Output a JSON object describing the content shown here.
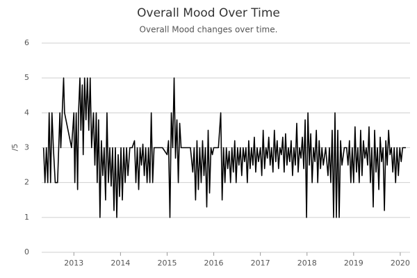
{
  "chart_data": {
    "type": "line",
    "title": "Overall Mood Over Time",
    "subtitle": "Overall Mood changes over time.",
    "ylabel": "/5",
    "color": "#000000",
    "grid": true,
    "xlim": [
      2012.31,
      2020.21
    ],
    "xticks": [
      2013,
      2014,
      2015,
      2016,
      2017,
      2018,
      2019,
      2020
    ],
    "ylim": [
      0,
      6
    ],
    "yticks": [
      0,
      1,
      2,
      3,
      4,
      5,
      6
    ],
    "x": [
      2012.35,
      2012.38,
      2012.41,
      2012.44,
      2012.47,
      2012.5,
      2012.53,
      2012.56,
      2012.6,
      2012.65,
      2012.7,
      2012.72,
      2012.75,
      2012.78,
      2012.8,
      2012.95,
      2013.0,
      2013.02,
      2013.05,
      2013.08,
      2013.1,
      2013.13,
      2013.15,
      2013.18,
      2013.2,
      2013.23,
      2013.26,
      2013.29,
      2013.32,
      2013.35,
      2013.38,
      2013.42,
      2013.45,
      2013.48,
      2013.5,
      2013.53,
      2013.56,
      2013.59,
      2013.62,
      2013.65,
      2013.68,
      2013.71,
      2013.74,
      2013.77,
      2013.8,
      2013.83,
      2013.86,
      2013.89,
      2013.92,
      2013.95,
      2013.98,
      2014.01,
      2014.04,
      2014.07,
      2014.1,
      2014.13,
      2014.16,
      2014.2,
      2014.25,
      2014.3,
      2014.33,
      2014.36,
      2014.39,
      2014.42,
      2014.45,
      2014.48,
      2014.51,
      2014.54,
      2014.57,
      2014.6,
      2014.63,
      2014.66,
      2014.69,
      2014.72,
      2014.8,
      2014.9,
      2015.0,
      2015.03,
      2015.06,
      2015.09,
      2015.12,
      2015.15,
      2015.18,
      2015.21,
      2015.24,
      2015.27,
      2015.3,
      2015.4,
      2015.5,
      2015.55,
      2015.58,
      2015.61,
      2015.64,
      2015.67,
      2015.7,
      2015.73,
      2015.76,
      2015.79,
      2015.82,
      2015.85,
      2015.88,
      2015.91,
      2015.94,
      2015.97,
      2016.0,
      2016.1,
      2016.15,
      2016.18,
      2016.21,
      2016.24,
      2016.27,
      2016.3,
      2016.33,
      2016.36,
      2016.39,
      2016.42,
      2016.45,
      2016.48,
      2016.51,
      2016.54,
      2016.57,
      2016.6,
      2016.63,
      2016.66,
      2016.69,
      2016.72,
      2016.75,
      2016.78,
      2016.81,
      2016.84,
      2016.87,
      2016.9,
      2016.93,
      2016.96,
      2017.0,
      2017.03,
      2017.06,
      2017.09,
      2017.12,
      2017.15,
      2017.18,
      2017.21,
      2017.24,
      2017.27,
      2017.3,
      2017.33,
      2017.36,
      2017.39,
      2017.42,
      2017.45,
      2017.48,
      2017.51,
      2017.54,
      2017.57,
      2017.6,
      2017.63,
      2017.66,
      2017.69,
      2017.72,
      2017.75,
      2017.78,
      2017.81,
      2017.84,
      2017.87,
      2017.9,
      2017.93,
      2017.96,
      2017.99,
      2018.02,
      2018.05,
      2018.08,
      2018.11,
      2018.14,
      2018.17,
      2018.2,
      2018.23,
      2018.26,
      2018.29,
      2018.32,
      2018.35,
      2018.4,
      2018.45,
      2018.48,
      2018.51,
      2018.54,
      2018.57,
      2018.6,
      2018.63,
      2018.66,
      2018.69,
      2018.72,
      2018.75,
      2018.8,
      2018.85,
      2018.88,
      2018.91,
      2018.94,
      2018.97,
      2019.0,
      2019.03,
      2019.06,
      2019.09,
      2019.12,
      2019.15,
      2019.18,
      2019.21,
      2019.24,
      2019.27,
      2019.3,
      2019.33,
      2019.36,
      2019.39,
      2019.42,
      2019.45,
      2019.48,
      2019.51,
      2019.54,
      2019.57,
      2019.6,
      2019.63,
      2019.66,
      2019.69,
      2019.72,
      2019.75,
      2019.78,
      2019.81,
      2019.84,
      2019.87,
      2019.9,
      2019.93,
      2019.96,
      2019.99,
      2020.02,
      2020.05,
      2020.12
    ],
    "values": [
      3,
      2,
      3,
      2,
      4,
      2,
      4,
      3,
      2,
      2,
      4,
      3,
      4,
      5,
      4,
      3,
      4,
      2,
      4,
      1.8,
      4,
      5,
      3.5,
      4.8,
      2.8,
      5,
      3.8,
      5,
      3.5,
      5,
      3,
      4,
      2.5,
      4,
      2,
      3.8,
      1,
      3.2,
      2.2,
      3,
      1.5,
      4,
      2,
      3,
      1.9,
      3,
      1.2,
      3,
      1,
      2.8,
      1.6,
      3,
      1.5,
      3,
      2,
      3,
      2.2,
      3,
      3,
      3.2,
      2,
      3,
      1.8,
      3,
      2.5,
      3.1,
      2.2,
      3,
      2,
      3,
      2,
      4,
      2,
      3,
      3,
      3,
      2.8,
      3.2,
      1,
      4,
      3,
      5,
      2.7,
      3.8,
      2,
      3.7,
      3,
      3,
      3,
      2.3,
      3,
      1.5,
      3.2,
      1.8,
      3,
      2,
      3.2,
      2.2,
      3,
      1.3,
      3.5,
      1.7,
      3,
      2.8,
      3,
      3,
      4,
      1.5,
      3,
      2,
      3,
      2.4,
      2.9,
      2,
      3,
      2.3,
      3.2,
      2,
      3,
      2.5,
      3,
      2.2,
      3,
      2.6,
      3,
      2,
      3.2,
      2.4,
      3,
      2.5,
      3.3,
      2.3,
      3,
      2.6,
      3,
      2.2,
      3.5,
      2.4,
      3,
      2.7,
      3.3,
      2.5,
      3,
      2.3,
      3.5,
      2.6,
      3.2,
      2.4,
      3,
      2.8,
      3.3,
      2.3,
      3.4,
      2.5,
      3,
      2.6,
      3.2,
      2.2,
      3,
      2.5,
      3.7,
      2.3,
      3,
      2.7,
      3.3,
      2.4,
      3.8,
      1,
      4,
      2.5,
      3.4,
      2,
      3,
      2.6,
      3.5,
      2,
      3.2,
      2.4,
      3,
      2.5,
      3,
      2.2,
      3,
      2,
      3.5,
      1,
      4,
      1,
      3.5,
      1,
      3.2,
      2.5,
      3,
      3,
      2.5,
      3.2,
      2,
      3,
      2,
      3.6,
      2.3,
      3,
      2,
      3.5,
      2.2,
      3.2,
      2.7,
      3,
      2.5,
      3.6,
      2,
      3,
      1.3,
      3.5,
      2.3,
      3,
      1.8,
      3.3,
      2.6,
      3,
      1.2,
      3.2,
      2.5,
      3.5,
      2.8,
      3,
      2.3,
      3,
      2,
      3,
      2.2,
      3,
      2.6,
      3,
      3
    ]
  }
}
